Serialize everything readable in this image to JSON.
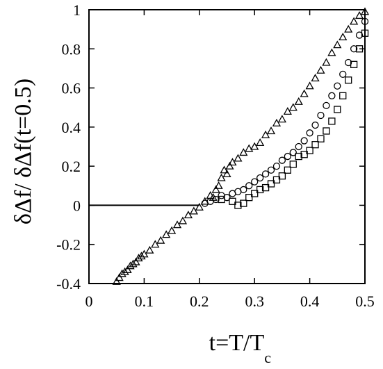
{
  "chart_data": {
    "type": "scatter",
    "title": "",
    "xlabel": "t=T/T",
    "xlabel_sub": "c",
    "ylabel": "δΔf/ δΔf(t=0.5)",
    "xlim": [
      0,
      0.5
    ],
    "ylim": [
      -0.4,
      1
    ],
    "x_ticks": [
      "0",
      "0.1",
      "0.2",
      "0.3",
      "0.4",
      "0.5"
    ],
    "y_ticks": [
      "-0.4",
      "-0.2",
      "0",
      "0.2",
      "0.4",
      "0.6",
      "0.8",
      "1"
    ],
    "x_tick_values": [
      0,
      0.1,
      0.2,
      0.3,
      0.4,
      0.5
    ],
    "y_tick_values": [
      -0.4,
      -0.2,
      0,
      0.2,
      0.4,
      0.6,
      0.8,
      1
    ],
    "reference_line": {
      "y": 0,
      "x_range": [
        0,
        0.2
      ]
    },
    "grid": false,
    "legend": "none",
    "series": [
      {
        "marker": "triangle",
        "points": [
          [
            0.05,
            -0.39
          ],
          [
            0.055,
            -0.37
          ],
          [
            0.06,
            -0.35
          ],
          [
            0.065,
            -0.34
          ],
          [
            0.07,
            -0.33
          ],
          [
            0.075,
            -0.31
          ],
          [
            0.08,
            -0.3
          ],
          [
            0.085,
            -0.29
          ],
          [
            0.09,
            -0.27
          ],
          [
            0.095,
            -0.26
          ],
          [
            0.1,
            -0.25
          ],
          [
            0.11,
            -0.23
          ],
          [
            0.12,
            -0.2
          ],
          [
            0.13,
            -0.18
          ],
          [
            0.14,
            -0.15
          ],
          [
            0.15,
            -0.13
          ],
          [
            0.16,
            -0.1
          ],
          [
            0.17,
            -0.08
          ],
          [
            0.18,
            -0.05
          ],
          [
            0.19,
            -0.03
          ],
          [
            0.2,
            -0.01
          ],
          [
            0.21,
            0.02
          ],
          [
            0.22,
            0.05
          ],
          [
            0.225,
            0.04
          ],
          [
            0.23,
            0.08
          ],
          [
            0.235,
            0.1
          ],
          [
            0.24,
            0.14
          ],
          [
            0.245,
            0.18
          ],
          [
            0.25,
            0.16
          ],
          [
            0.255,
            0.2
          ],
          [
            0.26,
            0.22
          ],
          [
            0.27,
            0.24
          ],
          [
            0.28,
            0.27
          ],
          [
            0.29,
            0.29
          ],
          [
            0.3,
            0.3
          ],
          [
            0.31,
            0.32
          ],
          [
            0.32,
            0.36
          ],
          [
            0.33,
            0.38
          ],
          [
            0.34,
            0.42
          ],
          [
            0.35,
            0.44
          ],
          [
            0.36,
            0.48
          ],
          [
            0.37,
            0.5
          ],
          [
            0.38,
            0.53
          ],
          [
            0.39,
            0.57
          ],
          [
            0.4,
            0.61
          ],
          [
            0.41,
            0.65
          ],
          [
            0.42,
            0.69
          ],
          [
            0.43,
            0.73
          ],
          [
            0.44,
            0.78
          ],
          [
            0.45,
            0.82
          ],
          [
            0.46,
            0.86
          ],
          [
            0.47,
            0.9
          ],
          [
            0.48,
            0.94
          ],
          [
            0.49,
            0.97
          ],
          [
            0.5,
            0.99
          ]
        ]
      },
      {
        "marker": "circle",
        "points": [
          [
            0.21,
            0.01
          ],
          [
            0.22,
            0.02
          ],
          [
            0.23,
            0.03
          ],
          [
            0.24,
            0.05
          ],
          [
            0.25,
            0.04
          ],
          [
            0.26,
            0.06
          ],
          [
            0.27,
            0.07
          ],
          [
            0.28,
            0.08
          ],
          [
            0.29,
            0.1
          ],
          [
            0.3,
            0.12
          ],
          [
            0.31,
            0.14
          ],
          [
            0.32,
            0.16
          ],
          [
            0.33,
            0.18
          ],
          [
            0.34,
            0.2
          ],
          [
            0.35,
            0.23
          ],
          [
            0.36,
            0.25
          ],
          [
            0.37,
            0.27
          ],
          [
            0.38,
            0.3
          ],
          [
            0.39,
            0.33
          ],
          [
            0.4,
            0.37
          ],
          [
            0.41,
            0.41
          ],
          [
            0.42,
            0.46
          ],
          [
            0.43,
            0.51
          ],
          [
            0.44,
            0.56
          ],
          [
            0.45,
            0.61
          ],
          [
            0.46,
            0.67
          ],
          [
            0.47,
            0.73
          ],
          [
            0.48,
            0.8
          ],
          [
            0.49,
            0.87
          ],
          [
            0.5,
            0.94
          ]
        ]
      },
      {
        "marker": "square",
        "points": [
          [
            0.24,
            0.03
          ],
          [
            0.26,
            0.02
          ],
          [
            0.27,
            0.0
          ],
          [
            0.28,
            0.01
          ],
          [
            0.29,
            0.04
          ],
          [
            0.3,
            0.06
          ],
          [
            0.31,
            0.08
          ],
          [
            0.32,
            0.09
          ],
          [
            0.33,
            0.11
          ],
          [
            0.34,
            0.13
          ],
          [
            0.35,
            0.15
          ],
          [
            0.36,
            0.18
          ],
          [
            0.37,
            0.21
          ],
          [
            0.38,
            0.25
          ],
          [
            0.39,
            0.26
          ],
          [
            0.4,
            0.28
          ],
          [
            0.41,
            0.31
          ],
          [
            0.42,
            0.34
          ],
          [
            0.43,
            0.38
          ],
          [
            0.44,
            0.43
          ],
          [
            0.45,
            0.49
          ],
          [
            0.46,
            0.56
          ],
          [
            0.47,
            0.64
          ],
          [
            0.48,
            0.72
          ],
          [
            0.49,
            0.8
          ],
          [
            0.5,
            0.88
          ]
        ]
      }
    ]
  }
}
